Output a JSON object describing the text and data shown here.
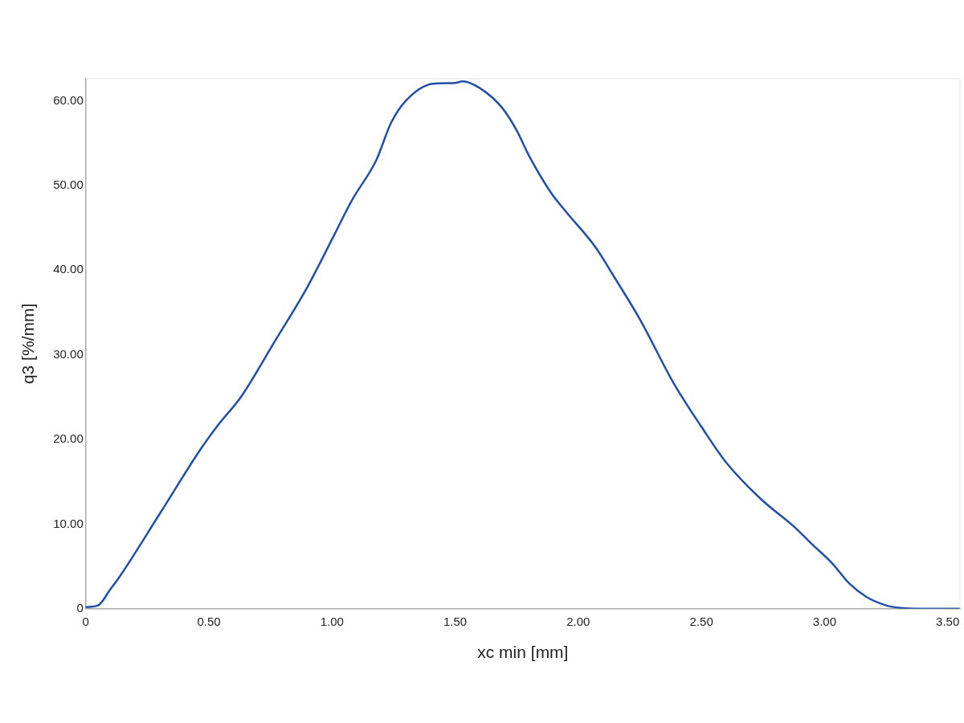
{
  "chart_data": {
    "type": "line",
    "xlabel": "xc min [mm]",
    "ylabel": "q3 [%/mm]",
    "xlim": [
      0,
      3.55
    ],
    "ylim": [
      0,
      62.6
    ],
    "xticks": [
      0,
      {
        "value": 0.5,
        "label": "0.50"
      },
      {
        "value": 1,
        "label": "1.00"
      },
      {
        "value": 1.5,
        "label": "1.50"
      },
      {
        "value": 2,
        "label": "2.00"
      },
      {
        "value": 2.5,
        "label": "2.50"
      },
      {
        "value": 3,
        "label": "3.00"
      },
      {
        "value": 3.5,
        "label": "3.50"
      }
    ],
    "yticks": [
      0,
      {
        "value": 10,
        "label": "10.00"
      },
      {
        "value": 20,
        "label": "20.00"
      },
      {
        "value": 30,
        "label": "30.00"
      },
      {
        "value": 40,
        "label": "40.00"
      },
      {
        "value": 50,
        "label": "50.00"
      },
      {
        "value": 60,
        "label": "60.00"
      }
    ],
    "grid": false,
    "legend": false,
    "marker": "none",
    "line_style": "solid",
    "series": [
      {
        "color": "#1f4fa8",
        "x": [
          0,
          0.05,
          0.1,
          0.14,
          0.3,
          0.47,
          0.54,
          0.63,
          0.77,
          0.9,
          1.01,
          1.08,
          1.18,
          1.24,
          1.3,
          1.41,
          1.5,
          1.53,
          1.6,
          1.69,
          1.75,
          1.8,
          1.89,
          1.95,
          2.07,
          2.15,
          2.25,
          2.39,
          2.5,
          2.6,
          2.74,
          2.88,
          2.95,
          3.03,
          3.1,
          3.17,
          3.25,
          3.31,
          3.4,
          3.55
        ],
        "values": [
          0.2,
          0.4,
          2.3,
          3.9,
          11.2,
          19,
          21.8,
          25,
          31.7,
          38,
          44.2,
          48.2,
          53,
          57.4,
          60,
          62,
          62.1,
          62.3,
          61.5,
          59.2,
          56.5,
          53.5,
          49.1,
          46.9,
          42.7,
          39,
          34.2,
          26.5,
          21.5,
          17.3,
          13,
          9.6,
          7.6,
          5.4,
          3,
          1.4,
          0.4,
          0.1,
          0,
          0
        ]
      }
    ]
  }
}
